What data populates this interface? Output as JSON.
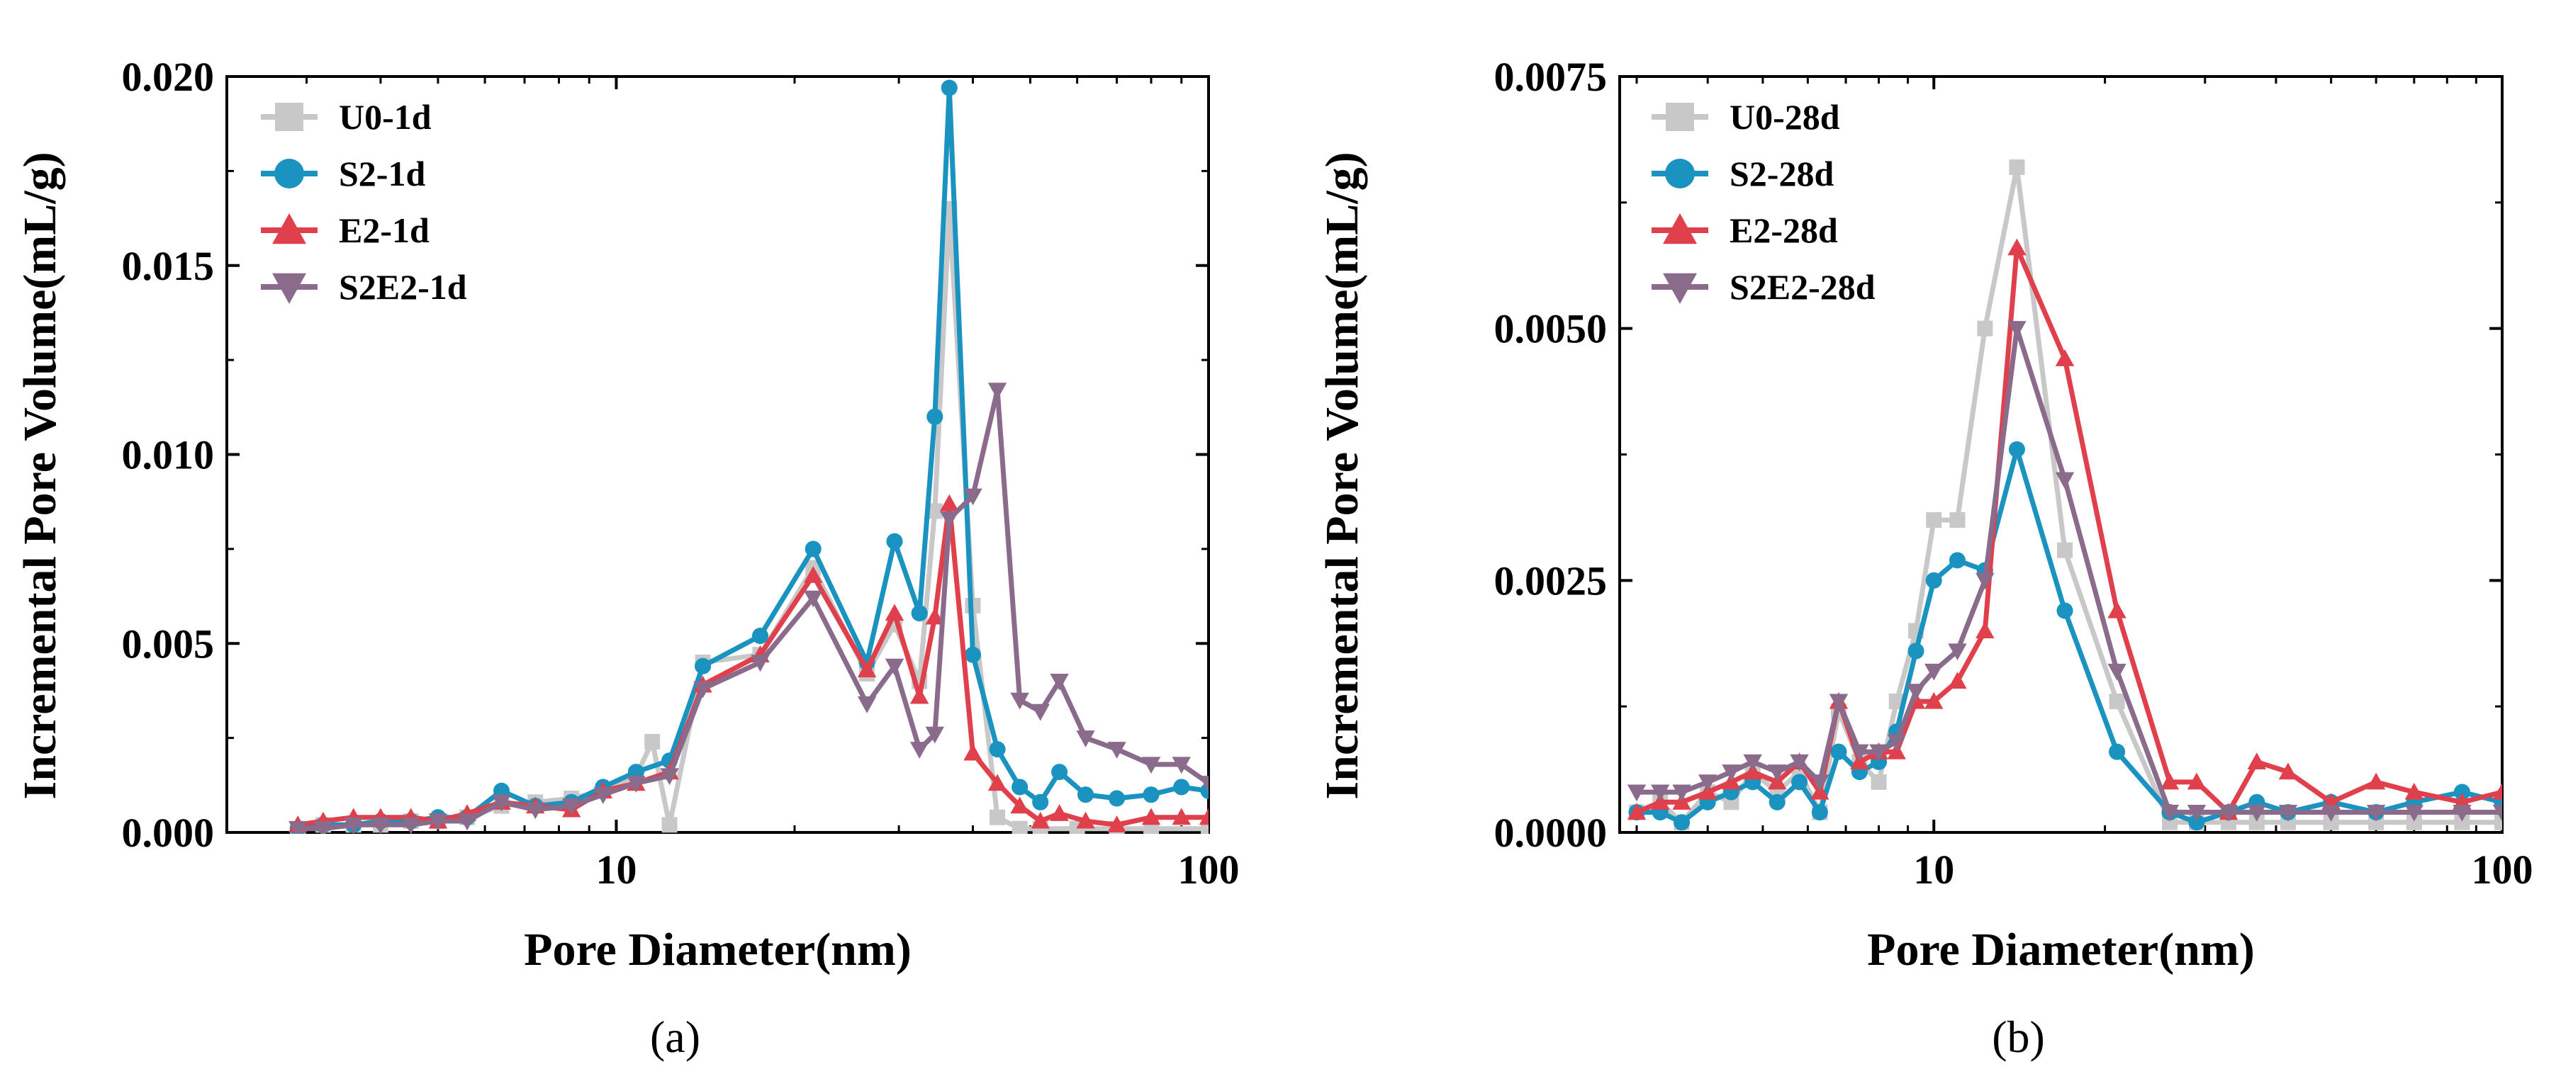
{
  "chart_data": [
    {
      "type": "line",
      "panel_label": "(a)",
      "xscale": "log",
      "xlim": [
        2.2,
        100
      ],
      "ylim": [
        0,
        0.02
      ],
      "xticks": [
        10,
        100
      ],
      "xtick_labels": [
        "10",
        "100"
      ],
      "yticks": [
        0,
        0.005,
        0.01,
        0.015,
        0.02
      ],
      "ytick_labels": [
        "0.000",
        "0.005",
        "0.010",
        "0.015",
        "0.020"
      ],
      "xlabel": "Pore Diameter(nm)",
      "ylabel": "Incremental Pore Volume(mL/g)",
      "legend_position": "top-left",
      "series": [
        {
          "name": "U0-1d",
          "color": "#c8c8c8",
          "marker": "square",
          "x": [
            2.9,
            3.2,
            3.6,
            4.0,
            4.5,
            5.0,
            5.6,
            6.4,
            7.3,
            8.4,
            9.5,
            10.8,
            11.5,
            12.3,
            14.0,
            17.5,
            21.5,
            26.5,
            29.5,
            32.5,
            34.5,
            36.5,
            40.0,
            44.0,
            48.0,
            52.0,
            60.0,
            70.0,
            80.0,
            100.0
          ],
          "y": [
            0.0001,
            0.0002,
            0.0002,
            0.0002,
            0.0003,
            0.0003,
            0.0004,
            0.0007,
            0.0008,
            0.0009,
            0.0011,
            0.0015,
            0.0024,
            0.0002,
            0.0045,
            0.0047,
            0.007,
            0.0042,
            0.0055,
            0.004,
            0.0085,
            0.0165,
            0.006,
            0.0004,
            0.0001,
            0.0001,
            0.0001,
            0.0001,
            0.0001,
            0.0001
          ]
        },
        {
          "name": "S2-1d",
          "color": "#1a93c0",
          "marker": "circle",
          "x": [
            2.9,
            3.2,
            3.6,
            4.0,
            4.5,
            5.0,
            5.6,
            6.4,
            7.3,
            8.4,
            9.5,
            10.8,
            12.3,
            14.0,
            17.5,
            21.5,
            26.5,
            29.5,
            32.5,
            34.5,
            36.5,
            40.0,
            44.0,
            48.0,
            52.0,
            56.0,
            62.0,
            70.0,
            80.0,
            90.0,
            100.0
          ],
          "y": [
            0.0001,
            0.0002,
            0.0002,
            0.0003,
            0.0003,
            0.0004,
            0.0004,
            0.0011,
            0.0007,
            0.0008,
            0.0012,
            0.0016,
            0.0019,
            0.0044,
            0.0052,
            0.0075,
            0.0045,
            0.0077,
            0.0058,
            0.011,
            0.0197,
            0.0047,
            0.0022,
            0.0012,
            0.0008,
            0.0016,
            0.001,
            0.0009,
            0.001,
            0.0012,
            0.0011
          ]
        },
        {
          "name": "E2-1d",
          "color": "#e0404c",
          "marker": "triangle-up",
          "x": [
            2.9,
            3.2,
            3.6,
            4.0,
            4.5,
            5.0,
            5.6,
            6.4,
            7.3,
            8.4,
            9.5,
            10.8,
            12.3,
            14.0,
            17.5,
            21.5,
            26.5,
            29.5,
            32.5,
            34.5,
            36.5,
            40.0,
            44.0,
            48.0,
            52.0,
            56.0,
            62.0,
            70.0,
            80.0,
            90.0,
            100.0
          ],
          "y": [
            0.0002,
            0.0003,
            0.0004,
            0.0004,
            0.0004,
            0.0003,
            0.0005,
            0.0008,
            0.0007,
            0.0006,
            0.0011,
            0.0013,
            0.0016,
            0.0039,
            0.0047,
            0.0068,
            0.0043,
            0.0058,
            0.0036,
            0.0057,
            0.0087,
            0.0021,
            0.0013,
            0.0007,
            0.0003,
            0.0005,
            0.0003,
            0.0002,
            0.0004,
            0.0004,
            0.0004
          ]
        },
        {
          "name": "S2E2-1d",
          "color": "#8b6b8b",
          "marker": "triangle-down",
          "x": [
            2.9,
            3.2,
            3.6,
            4.0,
            4.5,
            5.0,
            5.6,
            6.4,
            7.3,
            8.4,
            9.5,
            10.8,
            12.3,
            14.0,
            17.5,
            21.5,
            26.5,
            29.5,
            32.5,
            34.5,
            36.5,
            40.0,
            44.0,
            48.0,
            52.0,
            56.0,
            62.0,
            70.0,
            80.0,
            90.0,
            100.0
          ],
          "y": [
            0.0001,
            0.0001,
            0.0002,
            0.0002,
            0.0002,
            0.0003,
            0.0003,
            0.0008,
            0.0006,
            0.0007,
            0.001,
            0.0013,
            0.0015,
            0.0038,
            0.0045,
            0.0062,
            0.0034,
            0.0044,
            0.0022,
            0.0026,
            0.0083,
            0.0089,
            0.0117,
            0.0035,
            0.0032,
            0.004,
            0.0025,
            0.0022,
            0.0018,
            0.0018,
            0.0013
          ]
        }
      ]
    },
    {
      "type": "line",
      "panel_label": "(b)",
      "xscale": "log",
      "xlim": [
        2.8,
        100
      ],
      "ylim": [
        0,
        0.0075
      ],
      "xticks": [
        10,
        100
      ],
      "xtick_labels": [
        "10",
        "100"
      ],
      "yticks": [
        0,
        0.0025,
        0.005,
        0.0075
      ],
      "ytick_labels": [
        "0.0000",
        "0.0025",
        "0.0050",
        "0.0075"
      ],
      "xlabel": "Pore Diameter(nm)",
      "ylabel": "Incremental Pore Volume(mL/g)",
      "legend_position": "top-left",
      "series": [
        {
          "name": "U0-28d",
          "color": "#c8c8c8",
          "marker": "square",
          "x": [
            3.0,
            3.3,
            3.6,
            4.0,
            4.4,
            4.8,
            5.3,
            5.8,
            6.3,
            6.8,
            7.4,
            8.0,
            8.6,
            9.3,
            10.0,
            11.0,
            12.3,
            14.0,
            17.0,
            21.0,
            26.0,
            29.0,
            33.0,
            37.0,
            42.0,
            50.0,
            60.0,
            70.0,
            85.0,
            100.0
          ],
          "y": [
            0.0002,
            0.0003,
            0.0001,
            0.0004,
            0.0003,
            0.0006,
            0.0004,
            0.0006,
            0.0002,
            0.0012,
            0.0007,
            0.0005,
            0.0013,
            0.002,
            0.0031,
            0.0031,
            0.005,
            0.0066,
            0.0028,
            0.0013,
            0.0001,
            0.0001,
            0.0001,
            0.0001,
            0.0001,
            0.0001,
            0.0001,
            0.0001,
            0.0001,
            0.0001
          ]
        },
        {
          "name": "S2-28d",
          "color": "#1a93c0",
          "marker": "circle",
          "x": [
            3.0,
            3.3,
            3.6,
            4.0,
            4.4,
            4.8,
            5.3,
            5.8,
            6.3,
            6.8,
            7.4,
            8.0,
            8.6,
            9.3,
            10.0,
            11.0,
            12.3,
            14.0,
            17.0,
            21.0,
            26.0,
            29.0,
            33.0,
            37.0,
            42.0,
            50.0,
            60.0,
            70.0,
            85.0,
            100.0
          ],
          "y": [
            0.0002,
            0.0002,
            0.0001,
            0.0003,
            0.0004,
            0.0005,
            0.0003,
            0.0005,
            0.0002,
            0.0008,
            0.0006,
            0.0007,
            0.001,
            0.0018,
            0.0025,
            0.0027,
            0.0026,
            0.0038,
            0.0022,
            0.0008,
            0.0002,
            0.0001,
            0.0002,
            0.0003,
            0.0002,
            0.0003,
            0.0002,
            0.0003,
            0.0004,
            0.0003
          ]
        },
        {
          "name": "E2-28d",
          "color": "#e0404c",
          "marker": "triangle-up",
          "x": [
            3.0,
            3.3,
            3.6,
            4.0,
            4.4,
            4.8,
            5.3,
            5.8,
            6.3,
            6.8,
            7.4,
            8.0,
            8.6,
            9.3,
            10.0,
            11.0,
            12.3,
            14.0,
            17.0,
            21.0,
            26.0,
            29.0,
            33.0,
            37.0,
            42.0,
            50.0,
            60.0,
            70.0,
            85.0,
            100.0
          ],
          "y": [
            0.0002,
            0.0003,
            0.0003,
            0.0004,
            0.0005,
            0.0006,
            0.0005,
            0.0007,
            0.0004,
            0.0013,
            0.0007,
            0.0008,
            0.0008,
            0.0013,
            0.0013,
            0.0015,
            0.002,
            0.0058,
            0.0047,
            0.0022,
            0.0005,
            0.0005,
            0.0002,
            0.0007,
            0.0006,
            0.0003,
            0.0005,
            0.0004,
            0.0003,
            0.0004
          ]
        },
        {
          "name": "S2E2-28d",
          "color": "#8b6b8b",
          "marker": "triangle-down",
          "x": [
            3.0,
            3.3,
            3.6,
            4.0,
            4.4,
            4.8,
            5.3,
            5.8,
            6.3,
            6.8,
            7.4,
            8.0,
            8.6,
            9.3,
            10.0,
            11.0,
            12.3,
            14.0,
            17.0,
            21.0,
            26.0,
            29.0,
            33.0,
            37.0,
            42.0,
            50.0,
            60.0,
            70.0,
            85.0,
            100.0
          ],
          "y": [
            0.0004,
            0.0004,
            0.0004,
            0.0005,
            0.0006,
            0.0007,
            0.0006,
            0.0007,
            0.0005,
            0.0013,
            0.0008,
            0.0008,
            0.0009,
            0.0014,
            0.0016,
            0.0018,
            0.0025,
            0.005,
            0.0035,
            0.0016,
            0.0002,
            0.0002,
            0.0002,
            0.0002,
            0.0002,
            0.0002,
            0.0002,
            0.0002,
            0.0002,
            0.0002
          ]
        }
      ]
    }
  ]
}
